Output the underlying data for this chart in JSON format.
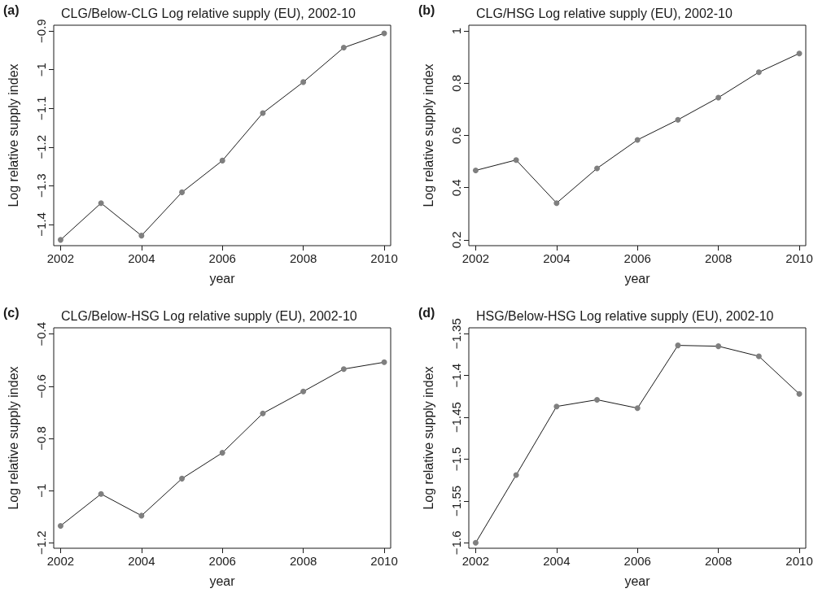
{
  "chart_data": [
    {
      "type": "line",
      "title": "CLG/Below-CLG Log relative supply (EU), 2002-10",
      "annotations": [
        "(a)"
      ],
      "xlabel": "year",
      "ylabel": "Log relative supply index",
      "x": [
        2002,
        2003,
        2004,
        2005,
        2006,
        2007,
        2008,
        2009,
        2010
      ],
      "series": [
        {
          "color": "#7f7f7f",
          "values": [
            -1.44,
            -1.345,
            -1.429,
            -1.317,
            -1.235,
            -1.112,
            -1.032,
            -0.943,
            -0.906
          ]
        }
      ],
      "xlim": [
        2001.83,
        2010.16
      ],
      "xticks": [
        2002,
        2004,
        2006,
        2008,
        2010
      ],
      "ylim": [
        -1.455,
        -0.885
      ],
      "yticks": [
        -1.4,
        -1.3,
        -1.2,
        -1.1,
        -1,
        -0.9
      ],
      "grid": false,
      "marker": "circle",
      "line_style": "solid"
    },
    {
      "type": "line",
      "title": "CLG/HSG Log relative supply (EU), 2002-10",
      "annotations": [
        "(b)"
      ],
      "xlabel": "year",
      "ylabel": "Log relative supply index",
      "x": [
        2002,
        2003,
        2004,
        2005,
        2006,
        2007,
        2008,
        2009,
        2010
      ],
      "series": [
        {
          "color": "#7f7f7f",
          "values": [
            0.466,
            0.506,
            0.341,
            0.474,
            0.583,
            0.66,
            0.745,
            0.842,
            0.914
          ]
        }
      ],
      "xlim": [
        2001.83,
        2010.16
      ],
      "xticks": [
        2002,
        2004,
        2006,
        2008,
        2010
      ],
      "ylim": [
        0.178,
        1.022
      ],
      "yticks": [
        0.2,
        0.4,
        0.6,
        0.8,
        1
      ],
      "grid": false,
      "marker": "circle",
      "line_style": "solid"
    },
    {
      "type": "line",
      "title": "CLG/Below-HSG Log relative supply (EU), 2002-10",
      "annotations": [
        "(c)"
      ],
      "xlabel": "year",
      "ylabel": "Log relative supply index",
      "x": [
        2002,
        2003,
        2004,
        2005,
        2006,
        2007,
        2008,
        2009,
        2010
      ],
      "series": [
        {
          "color": "#7f7f7f",
          "values": [
            -1.135,
            -1.013,
            -1.096,
            -0.954,
            -0.855,
            -0.704,
            -0.62,
            -0.534,
            -0.508
          ]
        }
      ],
      "xlim": [
        2001.83,
        2010.16
      ],
      "xticks": [
        2002,
        2004,
        2006,
        2008,
        2010
      ],
      "ylim": [
        -1.221,
        -0.376
      ],
      "yticks": [
        -1.2,
        -1,
        -0.8,
        -0.6,
        -0.4
      ],
      "grid": false,
      "marker": "circle",
      "line_style": "solid"
    },
    {
      "type": "line",
      "title": "HSG/Below-HSG Log relative supply (EU), 2002-10",
      "annotations": [
        "(d)"
      ],
      "xlabel": "year",
      "ylabel": "Log relative supply index",
      "x": [
        2002,
        2003,
        2004,
        2005,
        2006,
        2007,
        2008,
        2009,
        2010
      ],
      "series": [
        {
          "color": "#7f7f7f",
          "values": [
            -1.6,
            -1.519,
            -1.437,
            -1.429,
            -1.439,
            -1.364,
            -1.365,
            -1.377,
            -1.422
          ]
        }
      ],
      "xlim": [
        2001.83,
        2010.16
      ],
      "xticks": [
        2002,
        2004,
        2006,
        2008,
        2010
      ],
      "ylim": [
        -1.6065,
        -1.343
      ],
      "yticks": [
        -1.6,
        -1.55,
        -1.5,
        -1.45,
        -1.4,
        -1.35
      ],
      "grid": false,
      "marker": "circle",
      "line_style": "solid"
    }
  ]
}
